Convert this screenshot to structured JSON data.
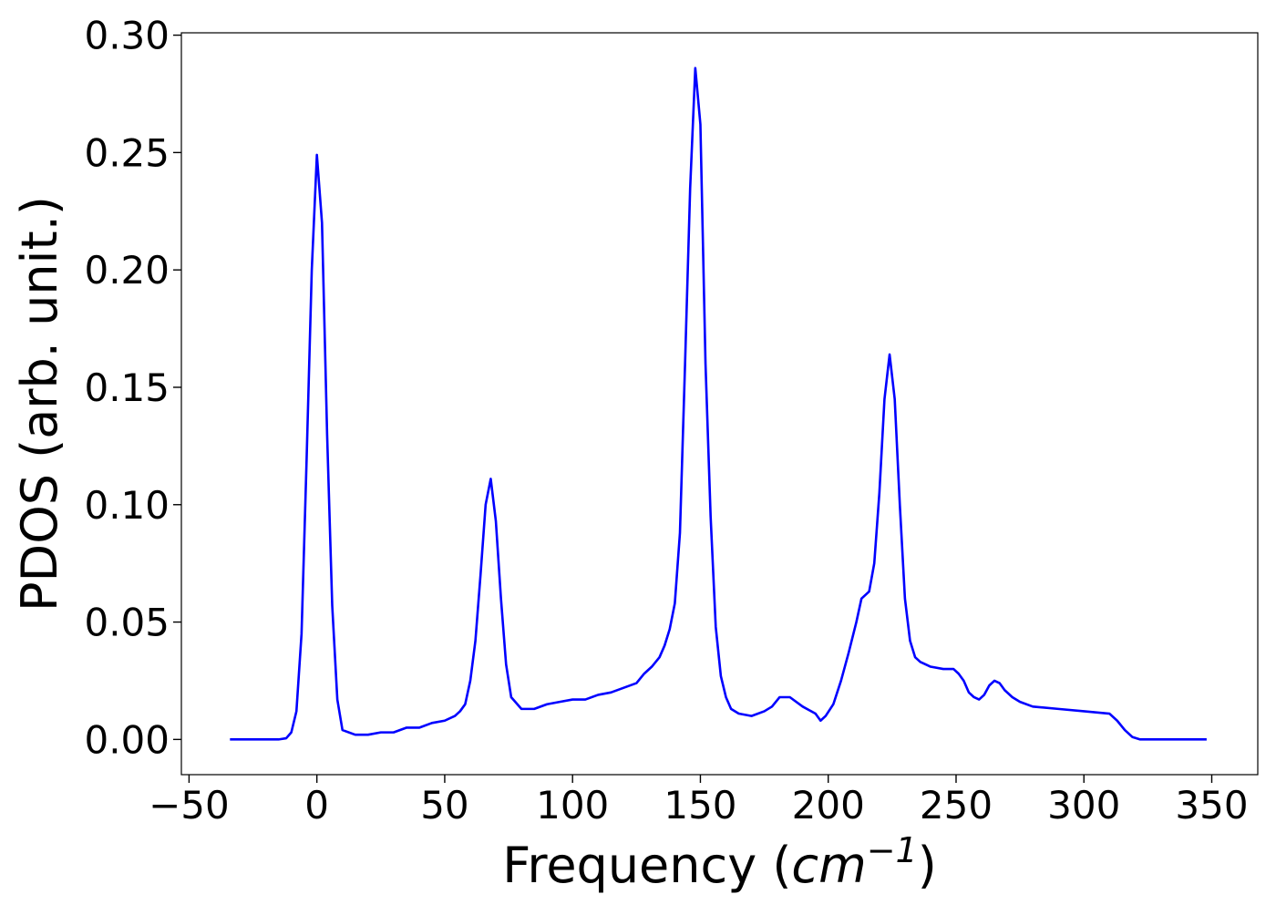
{
  "chart_data": {
    "type": "line",
    "title": "",
    "xlabel": "Frequency (",
    "xlabel_math": "cm",
    "xlabel_sup": "−1",
    "xlabel_close": ")",
    "ylabel": "PDOS (arb. unit.)",
    "xlim": [
      -53,
      368
    ],
    "ylim": [
      -0.015,
      0.301
    ],
    "xticks": [
      -50,
      0,
      50,
      100,
      150,
      200,
      250,
      300,
      350
    ],
    "xtick_labels": [
      "−50",
      "0",
      "50",
      "100",
      "150",
      "200",
      "250",
      "300",
      "350"
    ],
    "yticks": [
      0.0,
      0.05,
      0.1,
      0.15,
      0.2,
      0.25,
      0.3
    ],
    "ytick_labels": [
      "0.00",
      "0.05",
      "0.10",
      "0.15",
      "0.20",
      "0.25",
      "0.30"
    ],
    "grid": false,
    "series": [
      {
        "color": "#0000ff",
        "x": [
          -34,
          -15,
          -12,
          -10,
          -8,
          -6,
          -4,
          -2,
          0,
          2,
          4,
          6,
          8,
          10,
          15,
          20,
          25,
          30,
          35,
          40,
          45,
          50,
          54,
          56,
          58,
          60,
          62,
          64,
          66,
          68,
          70,
          72,
          74,
          76,
          80,
          85,
          90,
          95,
          100,
          105,
          110,
          115,
          120,
          125,
          128,
          131,
          134,
          136,
          138,
          140,
          142,
          144,
          146,
          148,
          150,
          152,
          154,
          156,
          158,
          160,
          162,
          165,
          170,
          175,
          178,
          181,
          185,
          190,
          195,
          197,
          199,
          202,
          205,
          208,
          211,
          213,
          216,
          218,
          220,
          222,
          224,
          226,
          228,
          230,
          232,
          234,
          236,
          240,
          245,
          249,
          251,
          253,
          255,
          257,
          259,
          261,
          263,
          265,
          267,
          269,
          272,
          275,
          280,
          290,
          300,
          310,
          313,
          316,
          319,
          322,
          326,
          348
        ],
        "y": [
          0.0,
          0.0,
          0.0005,
          0.003,
          0.012,
          0.045,
          0.12,
          0.2,
          0.249,
          0.22,
          0.13,
          0.057,
          0.017,
          0.004,
          0.002,
          0.002,
          0.003,
          0.003,
          0.005,
          0.005,
          0.007,
          0.008,
          0.01,
          0.012,
          0.015,
          0.025,
          0.042,
          0.07,
          0.1,
          0.111,
          0.093,
          0.06,
          0.032,
          0.018,
          0.013,
          0.013,
          0.015,
          0.016,
          0.017,
          0.017,
          0.019,
          0.02,
          0.022,
          0.024,
          0.028,
          0.031,
          0.035,
          0.04,
          0.047,
          0.058,
          0.088,
          0.16,
          0.235,
          0.286,
          0.262,
          0.16,
          0.095,
          0.048,
          0.027,
          0.018,
          0.013,
          0.011,
          0.01,
          0.012,
          0.014,
          0.018,
          0.018,
          0.014,
          0.011,
          0.008,
          0.01,
          0.015,
          0.025,
          0.037,
          0.05,
          0.06,
          0.063,
          0.075,
          0.105,
          0.145,
          0.164,
          0.145,
          0.1,
          0.06,
          0.042,
          0.035,
          0.033,
          0.031,
          0.03,
          0.03,
          0.028,
          0.025,
          0.02,
          0.018,
          0.017,
          0.019,
          0.023,
          0.025,
          0.024,
          0.021,
          0.018,
          0.016,
          0.014,
          0.013,
          0.012,
          0.011,
          0.008,
          0.004,
          0.001,
          0.0,
          0.0,
          0.0
        ]
      }
    ]
  }
}
